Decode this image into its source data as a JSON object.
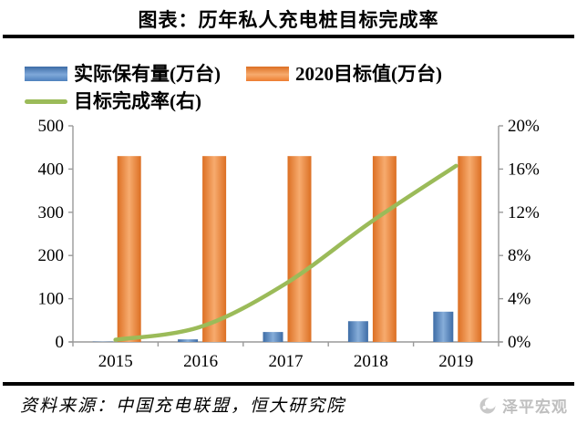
{
  "title": "图表：历年私人充电桩目标完成率",
  "legend": [
    {
      "label": "实际保有量(万台)",
      "type": "bar",
      "color": "#4f81bd"
    },
    {
      "label": "2020目标值(万台)",
      "type": "bar",
      "color": "#ed7d31"
    },
    {
      "label": "目标完成率(右)",
      "type": "line",
      "color": "#9bbb59"
    }
  ],
  "chart_data": {
    "type": "bar",
    "categories": [
      "2015",
      "2016",
      "2017",
      "2018",
      "2019"
    ],
    "series": [
      {
        "name": "实际保有量(万台)",
        "type": "bar",
        "axis": "left",
        "color": "#4f81bd",
        "values": [
          0.8,
          6,
          23,
          48,
          70
        ]
      },
      {
        "name": "2020目标值(万台)",
        "type": "bar",
        "axis": "left",
        "color": "#ed7d31",
        "values": [
          430,
          430,
          430,
          430,
          430
        ]
      },
      {
        "name": "目标完成率(右)",
        "type": "line",
        "axis": "right",
        "color": "#9bbb59",
        "values": [
          0.2,
          1.4,
          5.4,
          11.1,
          16.3
        ]
      }
    ],
    "left_axis": {
      "min": 0,
      "max": 500,
      "step": 100,
      "tick_labels": [
        "0",
        "100",
        "200",
        "300",
        "400",
        "500"
      ]
    },
    "right_axis": {
      "min": 0,
      "max": 20,
      "step": 4,
      "tick_labels": [
        "0%",
        "4%",
        "8%",
        "12%",
        "16%",
        "20%"
      ],
      "unit": "%"
    },
    "grid": false,
    "legend_position": "top-left",
    "axis_color": "#9a9a9a"
  },
  "source": {
    "text": "资料来源：中国充电联盟，恒大研究院"
  },
  "watermark": {
    "text": "泽平宏观"
  }
}
